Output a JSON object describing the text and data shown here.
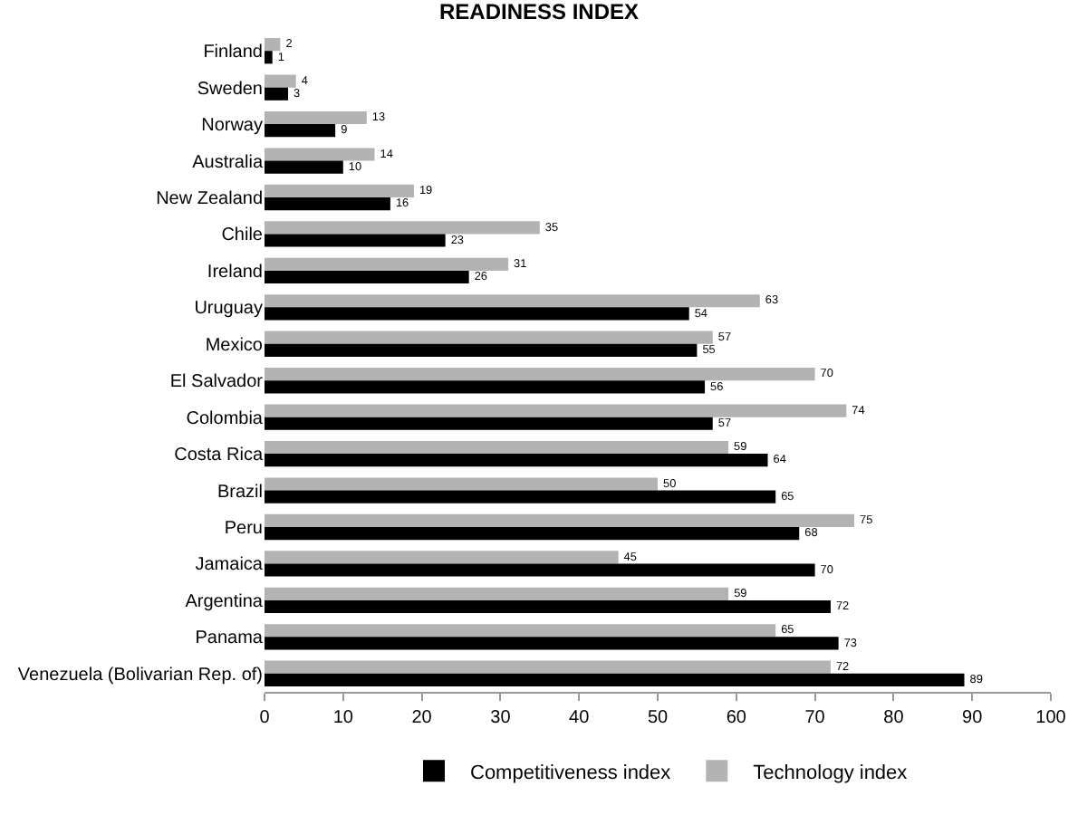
{
  "chart_data": {
    "type": "bar",
    "title": "READINESS INDEX",
    "orientation": "horizontal",
    "categories": [
      "Finland",
      "Sweden",
      "Norway",
      "Australia",
      "New Zealand",
      "Chile",
      "Ireland",
      "Uruguay",
      "Mexico",
      "El Salvador",
      "Colombia",
      "Costa Rica",
      "Brazil",
      "Peru",
      "Jamaica",
      "Argentina",
      "Panama",
      "Venezuela (Bolivarian Rep. of)"
    ],
    "series": [
      {
        "name": "Competitiveness index",
        "color": "#000000",
        "values": [
          1,
          3,
          9,
          10,
          16,
          23,
          26,
          54,
          55,
          56,
          57,
          64,
          65,
          68,
          70,
          72,
          73,
          89
        ]
      },
      {
        "name": "Technology index",
        "color": "#b3b3b3",
        "values": [
          2,
          4,
          13,
          14,
          19,
          35,
          31,
          63,
          57,
          70,
          74,
          59,
          50,
          75,
          45,
          59,
          65,
          72
        ]
      }
    ],
    "xlim": [
      0,
      100
    ],
    "xticks": [
      0,
      10,
      20,
      30,
      40,
      50,
      60,
      70,
      80,
      90,
      100
    ],
    "data_labels": true,
    "grid": false,
    "legend": "bottom"
  }
}
